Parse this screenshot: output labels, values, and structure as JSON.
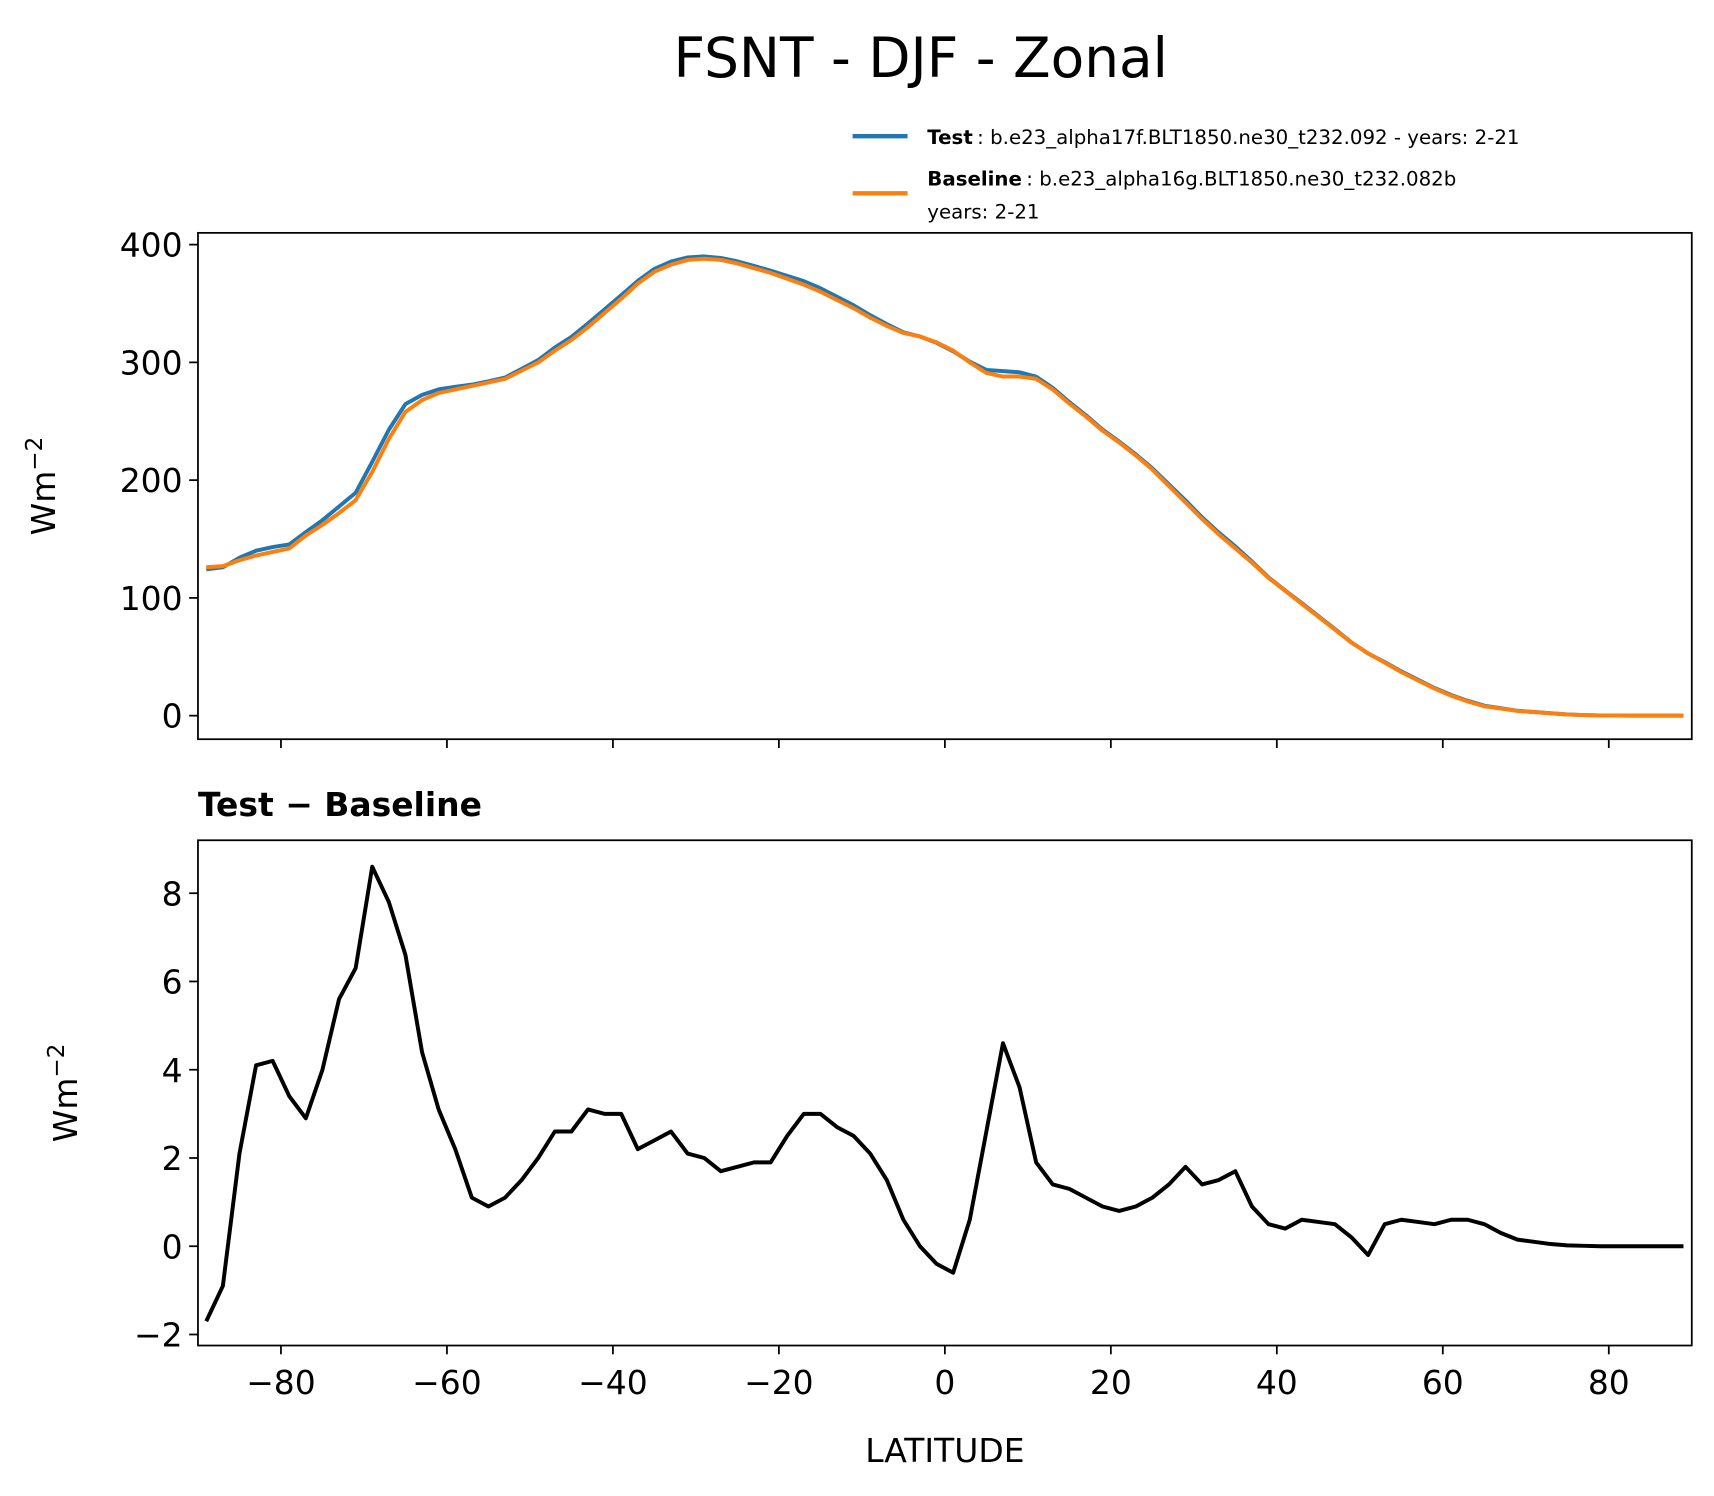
{
  "title": "FSNT - DJF - Zonal",
  "chart_data": [
    {
      "type": "line",
      "x": [
        -89,
        -87,
        -85,
        -83,
        -81,
        -79,
        -77,
        -75,
        -73,
        -71,
        -69,
        -67,
        -65,
        -63,
        -61,
        -59,
        -57,
        -55,
        -53,
        -51,
        -49,
        -47,
        -45,
        -43,
        -41,
        -39,
        -37,
        -35,
        -33,
        -31,
        -29,
        -27,
        -25,
        -23,
        -21,
        -19,
        -17,
        -15,
        -13,
        -11,
        -9,
        -7,
        -5,
        -3,
        -1,
        1,
        3,
        5,
        7,
        9,
        11,
        13,
        15,
        17,
        19,
        21,
        23,
        25,
        27,
        29,
        31,
        33,
        35,
        37,
        39,
        41,
        43,
        45,
        47,
        49,
        51,
        53,
        55,
        57,
        59,
        61,
        63,
        65,
        67,
        69,
        71,
        73,
        75,
        77,
        79,
        81,
        83,
        85,
        87,
        89
      ],
      "series": [
        {
          "name": "Test",
          "legend_text": [
            ": b.e23_alpha17f.BLT1850.ne30_t232.092 - years: 2-21"
          ],
          "color": "#1f77b4",
          "values": [
            124.3,
            126,
            134.1,
            140.1,
            143.2,
            145.4,
            155.9,
            166,
            177.6,
            189.3,
            215.6,
            242.8,
            264.6,
            272.4,
            277.1,
            279.2,
            281.1,
            283.9,
            287.1,
            294.5,
            302,
            312.6,
            321.6,
            333.1,
            345,
            357,
            369.2,
            379.4,
            385.6,
            389.1,
            390,
            388.7,
            385.8,
            381.9,
            377.9,
            373.5,
            369,
            363,
            355.7,
            348.5,
            340.1,
            332.5,
            325.6,
            322,
            316.6,
            309.4,
            300.6,
            293.6,
            292.6,
            291.6,
            287.9,
            278.4,
            266.3,
            255.1,
            242.9,
            232.8,
            221.9,
            210.1,
            196.4,
            182.8,
            168.4,
            155.5,
            143.7,
            130.9,
            117.5,
            106.4,
            95.6,
            84.55,
            73.5,
            62.2,
            52.8,
            45.5,
            37.6,
            30.55,
            23.5,
            17.6,
            12.6,
            8.5,
            6.3,
            4.15,
            3.1,
            2.05,
            1.02,
            0.51,
            0.2,
            0.1,
            0,
            0,
            0,
            0
          ]
        },
        {
          "name": "Baseline",
          "legend_text": [
            ": b.e23_alpha16g.BLT1850.ne30_t232.082b",
            "years: 2-21"
          ],
          "color": "#ff7f0e",
          "values": [
            126,
            127,
            132,
            136,
            139,
            142,
            153,
            162,
            172,
            183,
            207,
            235,
            258,
            268,
            274,
            277,
            280,
            283,
            286,
            293,
            300,
            310,
            319,
            330,
            342,
            354,
            367,
            377,
            383,
            387,
            388,
            387,
            384,
            380,
            376,
            371,
            366,
            360,
            353,
            346,
            338,
            331,
            325,
            322,
            317,
            310,
            300,
            291,
            288,
            288,
            286,
            277,
            265,
            254,
            242,
            232,
            221,
            209,
            195,
            181,
            167,
            154,
            142,
            130,
            117,
            106,
            95,
            84,
            73,
            62,
            53,
            45,
            37,
            30,
            23,
            17,
            12,
            8,
            6,
            4,
            3,
            2,
            1,
            0.5,
            0.2,
            0.1,
            0,
            0,
            0,
            0
          ]
        }
      ],
      "ylabel": {
        "text": "Wm",
        "superscript": "−2"
      },
      "xlim": [
        -90,
        90
      ],
      "xticks": [
        -80,
        -60,
        -40,
        -20,
        0,
        20,
        40,
        60,
        80
      ],
      "ylim": [
        -20,
        410
      ],
      "yticks": [
        0,
        100,
        200,
        300,
        400
      ]
    },
    {
      "type": "line",
      "title": "Test − Baseline",
      "x": [
        -89,
        -87,
        -85,
        -83,
        -81,
        -79,
        -77,
        -75,
        -73,
        -71,
        -69,
        -67,
        -65,
        -63,
        -61,
        -59,
        -57,
        -55,
        -53,
        -51,
        -49,
        -47,
        -45,
        -43,
        -41,
        -39,
        -37,
        -35,
        -33,
        -31,
        -29,
        -27,
        -25,
        -23,
        -21,
        -19,
        -17,
        -15,
        -13,
        -11,
        -9,
        -7,
        -5,
        -3,
        -1,
        1,
        3,
        5,
        7,
        9,
        11,
        13,
        15,
        17,
        19,
        21,
        23,
        25,
        27,
        29,
        31,
        33,
        35,
        37,
        39,
        41,
        43,
        45,
        47,
        49,
        51,
        53,
        55,
        57,
        59,
        61,
        63,
        65,
        67,
        69,
        71,
        73,
        75,
        77,
        79,
        81,
        83,
        85,
        87,
        89
      ],
      "color": "#000000",
      "values": [
        -1.7,
        -0.9,
        2.1,
        4.1,
        4.2,
        3.4,
        2.9,
        4.0,
        5.6,
        6.3,
        8.6,
        7.8,
        6.6,
        4.4,
        3.1,
        2.2,
        1.1,
        0.9,
        1.1,
        1.5,
        2.0,
        2.6,
        2.6,
        3.1,
        3.0,
        3.0,
        2.2,
        2.4,
        2.6,
        2.1,
        2.0,
        1.7,
        1.8,
        1.9,
        1.9,
        2.5,
        3.0,
        3.0,
        2.7,
        2.5,
        2.1,
        1.5,
        0.6,
        0.0,
        -0.4,
        -0.6,
        0.6,
        2.6,
        4.6,
        3.6,
        1.9,
        1.4,
        1.3,
        1.1,
        0.9,
        0.8,
        0.9,
        1.1,
        1.4,
        1.8,
        1.4,
        1.5,
        1.7,
        0.9,
        0.5,
        0.4,
        0.6,
        0.55,
        0.5,
        0.2,
        -0.2,
        0.5,
        0.6,
        0.55,
        0.5,
        0.6,
        0.6,
        0.5,
        0.3,
        0.15,
        0.1,
        0.05,
        0.02,
        0.01,
        0,
        0,
        0,
        0,
        0,
        0
      ],
      "xlabel": "LATITUDE",
      "ylabel": {
        "text": "Wm",
        "superscript": "−2"
      },
      "xlim": [
        -90,
        90
      ],
      "xticks": [
        {
          "value": -80,
          "label": "−80"
        },
        {
          "value": -60,
          "label": "−60"
        },
        {
          "value": -40,
          "label": "−40"
        },
        {
          "value": -20,
          "label": "−20"
        },
        0,
        20,
        40,
        60,
        80
      ],
      "ylim": [
        -2.25,
        9.2
      ],
      "yticks": [
        {
          "value": -2,
          "label": "−2"
        },
        0,
        2,
        4,
        6,
        8
      ]
    }
  ]
}
